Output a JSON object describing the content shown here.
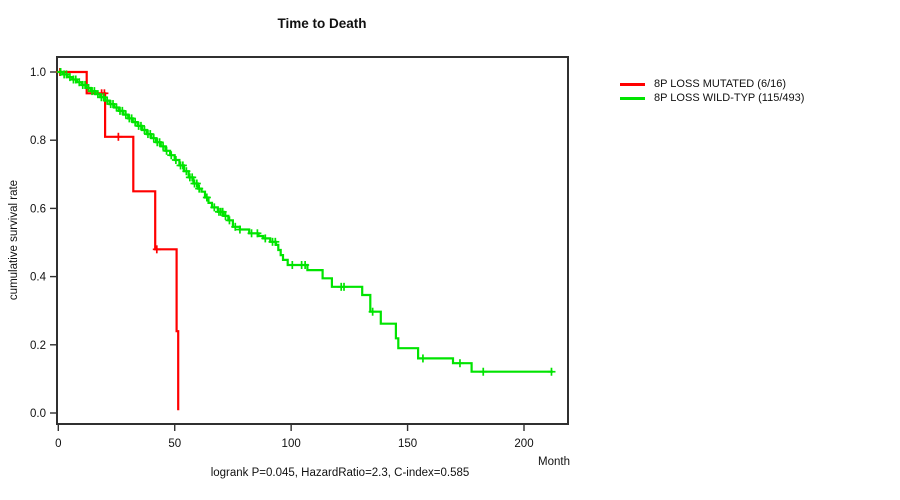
{
  "chart_data": {
    "type": "line",
    "subtype": "kaplan-meier-step-curve",
    "title": "Time to Death",
    "xlabel": "Month",
    "ylabel": "cumulative survival rate",
    "annotation": "logrank P=0.045, HazardRatio=2.3, C-index=0.585",
    "xlim": [
      0,
      220
    ],
    "ylim": [
      0.0,
      1.0
    ],
    "xticks": [
      0,
      50,
      100,
      150,
      200
    ],
    "yticks": [
      1.0,
      0.8,
      0.6,
      0.4,
      0.2,
      0.0
    ],
    "ytick_labels": [
      "1.0",
      "0.8",
      "0.6",
      "0.4",
      "0.2",
      "0.0"
    ],
    "grid": false,
    "legend_position": "right-outside",
    "series": [
      {
        "name": "8P LOSS MUTATED (6/16)",
        "color": "#ff0000",
        "steps": [
          [
            0,
            1.0
          ],
          [
            12.2,
            0.9375
          ],
          [
            20.1,
            0.81
          ],
          [
            32.2,
            0.65
          ],
          [
            41.6,
            0.48
          ],
          [
            50.8,
            0.24
          ],
          [
            51.5,
            0.008
          ]
        ],
        "end_time": 51.5,
        "censor_times": [
          0.7,
          18.6,
          19.8,
          25.8,
          42.3
        ]
      },
      {
        "name": "8P LOSS WILD-TYP (115/493)",
        "color": "#00e400",
        "steps": [
          [
            0,
            1.0
          ],
          [
            2,
            0.993
          ],
          [
            4,
            0.985
          ],
          [
            6,
            0.978
          ],
          [
            8,
            0.97
          ],
          [
            10,
            0.962
          ],
          [
            12,
            0.953
          ],
          [
            14,
            0.944
          ],
          [
            16,
            0.935
          ],
          [
            18,
            0.926
          ],
          [
            20,
            0.916
          ],
          [
            22,
            0.906
          ],
          [
            24,
            0.896
          ],
          [
            26,
            0.886
          ],
          [
            28,
            0.875
          ],
          [
            30,
            0.864
          ],
          [
            32,
            0.853
          ],
          [
            34,
            0.842
          ],
          [
            36,
            0.83
          ],
          [
            38,
            0.818
          ],
          [
            40,
            0.806
          ],
          [
            42,
            0.794
          ],
          [
            44,
            0.782
          ],
          [
            46,
            0.769
          ],
          [
            48,
            0.756
          ],
          [
            50,
            0.742
          ],
          [
            52,
            0.726
          ],
          [
            54,
            0.709
          ],
          [
            56,
            0.691
          ],
          [
            58,
            0.673
          ],
          [
            60,
            0.658
          ],
          [
            61.5,
            0.649
          ],
          [
            63,
            0.632
          ],
          [
            64.5,
            0.616
          ],
          [
            66,
            0.603
          ],
          [
            68.5,
            0.59
          ],
          [
            71,
            0.578
          ],
          [
            73,
            0.565
          ],
          [
            75,
            0.546
          ],
          [
            78,
            0.538
          ],
          [
            82,
            0.527
          ],
          [
            86,
            0.519
          ],
          [
            88,
            0.512
          ],
          [
            91,
            0.502
          ],
          [
            93.5,
            0.493
          ],
          [
            94.5,
            0.478
          ],
          [
            95.5,
            0.463
          ],
          [
            96.5,
            0.449
          ],
          [
            98.5,
            0.434
          ],
          [
            107,
            0.419
          ],
          [
            113.5,
            0.395
          ],
          [
            117.5,
            0.37
          ],
          [
            130.5,
            0.346
          ],
          [
            134,
            0.297
          ],
          [
            138.5,
            0.262
          ],
          [
            145,
            0.219
          ],
          [
            146,
            0.19
          ],
          [
            154.5,
            0.16
          ],
          [
            169.5,
            0.146
          ],
          [
            177.5,
            0.121
          ]
        ],
        "end_time": 212.4,
        "censor_times": [
          1,
          2.5,
          3.5,
          5,
          6.5,
          7.5,
          9,
          10.5,
          11.5,
          13,
          14.5,
          15.5,
          17,
          18.5,
          19.5,
          21,
          22.5,
          23.5,
          25,
          26.5,
          27.5,
          29,
          30.5,
          31.5,
          33,
          34.5,
          35.5,
          37,
          38.5,
          39.5,
          41,
          42.5,
          43.5,
          45,
          46.5,
          48.5,
          50.5,
          52.5,
          53.5,
          55,
          56.5,
          57.5,
          58.5,
          59.5,
          60.5,
          63.8,
          67,
          69,
          69.8,
          70.6,
          71.8,
          73.5,
          76,
          78,
          83,
          85.5,
          88.9,
          92,
          93.2,
          100.5,
          104.5,
          106,
          121.5,
          122.7,
          135,
          156.6,
          172.5,
          182.5,
          211.8
        ]
      }
    ]
  }
}
